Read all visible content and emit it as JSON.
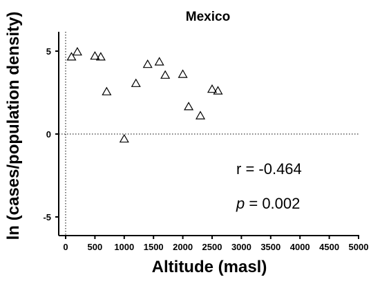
{
  "chart_data": {
    "type": "scatter",
    "title": "Mexico",
    "xlabel": "Altitude (masl)",
    "ylabel": "ln (cases/population density)",
    "xlim": [
      0,
      5000
    ],
    "ylim": [
      -5.5,
      6
    ],
    "x_ticks": [
      0,
      500,
      1000,
      1500,
      2000,
      2500,
      3000,
      3500,
      4000,
      4500,
      5000
    ],
    "y_ticks": [
      -5,
      0,
      5
    ],
    "marker": "open-triangle",
    "reference_lines": {
      "x": 0,
      "y": 0,
      "style": "dotted"
    },
    "series": [
      {
        "points": [
          {
            "x": 100,
            "y": 4.65
          },
          {
            "x": 200,
            "y": 4.95
          },
          {
            "x": 500,
            "y": 4.7
          },
          {
            "x": 600,
            "y": 4.65
          },
          {
            "x": 700,
            "y": 2.55
          },
          {
            "x": 1000,
            "y": -0.3
          },
          {
            "x": 1200,
            "y": 3.05
          },
          {
            "x": 1400,
            "y": 4.2
          },
          {
            "x": 1600,
            "y": 4.35
          },
          {
            "x": 1700,
            "y": 3.55
          },
          {
            "x": 2000,
            "y": 3.6
          },
          {
            "x": 2100,
            "y": 1.65
          },
          {
            "x": 2300,
            "y": 1.1
          },
          {
            "x": 2500,
            "y": 2.7
          },
          {
            "x": 2600,
            "y": 2.6
          }
        ]
      }
    ],
    "annotations": {
      "r_text": "r = -0.464",
      "p_symbol": "p",
      "p_value": " = 0.002"
    }
  },
  "colors": {
    "ink": "#000000",
    "background": "#ffffff"
  }
}
